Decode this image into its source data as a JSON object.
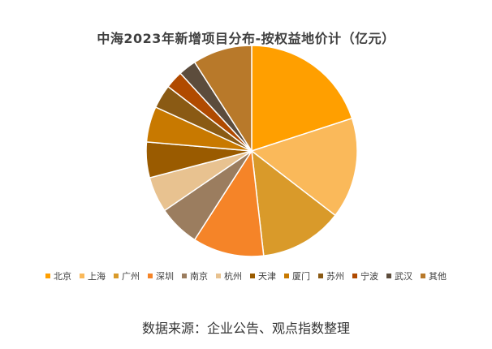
{
  "chart_data": {
    "type": "pie",
    "title": "中海2023年新增项目分布-按权益地价计（亿元）",
    "categories": [
      "北京",
      "上海",
      "广州",
      "深圳",
      "南京",
      "杭州",
      "天津",
      "厦门",
      "苏州",
      "宁波",
      "武汉",
      "其他"
    ],
    "values": [
      22,
      17,
      14,
      12,
      7,
      6,
      6,
      6,
      4,
      3,
      3,
      10
    ],
    "colors": [
      "#FF9F00",
      "#FAB95A",
      "#D99A2A",
      "#F58428",
      "#9B7D5F",
      "#E8C290",
      "#9A5B00",
      "#C87900",
      "#8A5A14",
      "#B04A00",
      "#5C4C3C",
      "#B8792A"
    ],
    "legend_position": "bottom",
    "source": "数据来源：企业公告、观点指数整理"
  }
}
